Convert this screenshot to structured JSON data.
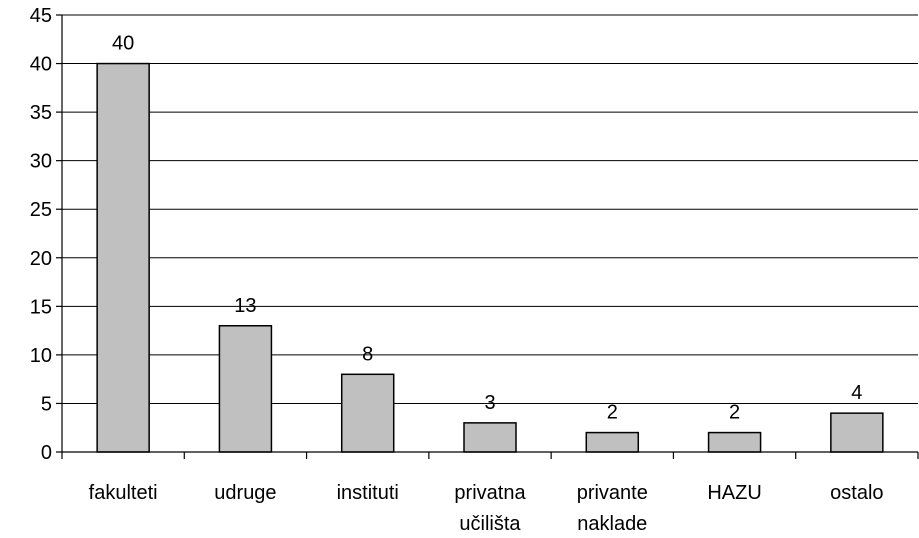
{
  "chart_data": {
    "type": "bar",
    "categories": [
      [
        "fakulteti"
      ],
      [
        "udruge"
      ],
      [
        "instituti"
      ],
      [
        "privatna",
        "učilišta"
      ],
      [
        "privante",
        "naklade"
      ],
      [
        "HAZU"
      ],
      [
        "ostalo"
      ]
    ],
    "values": [
      40,
      13,
      8,
      3,
      2,
      2,
      4
    ],
    "data_labels": [
      "40",
      "13",
      "8",
      "3",
      "2",
      "2",
      "4"
    ],
    "y_ticks": [
      "0",
      "5",
      "10",
      "15",
      "20",
      "25",
      "30",
      "35",
      "40",
      "45"
    ],
    "ylim": [
      0,
      45
    ],
    "grid": true,
    "colors": {
      "bar_fill": "#c0c0c0",
      "bar_stroke": "#000000"
    }
  }
}
